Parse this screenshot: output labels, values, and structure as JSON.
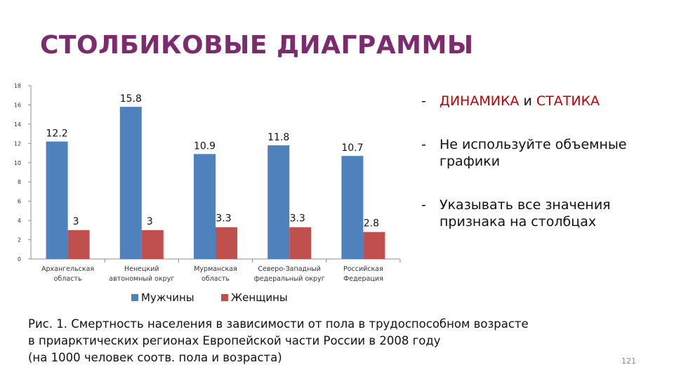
{
  "slide": {
    "title": "СТОЛБИКОВЫЕ ДИАГРАММЫ",
    "page_number": "121",
    "bullets": {
      "b1_dash": "-",
      "b1_part1": "ДИНАМИКА",
      "b1_part2": " и ",
      "b1_part3": "СТАТИКА",
      "b2_dash": "-",
      "b2_text": "Не используйте объемные графики",
      "b3_dash": "-",
      "b3_text": "Указывать все значения признака на столбцах"
    },
    "caption": {
      "line1": "Рис. 1. Смертность населения в зависимости от пола в трудоспособном возрасте",
      "line2": "в приарктических регионах Европейской части России в 2008 году",
      "line3": "(на 1000 человек соотв. пола и возраста)"
    },
    "colors": {
      "title": "#7b2b6e",
      "accent_red": "#c00000"
    }
  },
  "chart_data": {
    "type": "bar",
    "categories": [
      [
        "Архангельская",
        "область"
      ],
      [
        "Ненецкий",
        "автономный округ"
      ],
      [
        "Мурманская",
        "область"
      ],
      [
        "Северо-Западный",
        "федеральный округ"
      ],
      [
        "Российская",
        "Федерация"
      ]
    ],
    "series": [
      {
        "name": "Мужчины",
        "values": [
          12.2,
          15.8,
          10.9,
          11.8,
          10.7
        ],
        "labels": [
          "12.2",
          "15.8",
          "10.9",
          "11.8",
          "10.7"
        ],
        "color": "#4f81bd"
      },
      {
        "name": "Женщины",
        "values": [
          3,
          3,
          3.3,
          3.3,
          2.8
        ],
        "labels": [
          "3",
          "3",
          "3.3",
          "3.3",
          "2.8"
        ],
        "color": "#c0504d"
      }
    ],
    "ylim": [
      0,
      18
    ],
    "yticks": [
      "0",
      "2",
      "4",
      "6",
      "8",
      "10",
      "12",
      "14",
      "16",
      "18"
    ],
    "grid": false,
    "legend": "bottom"
  }
}
